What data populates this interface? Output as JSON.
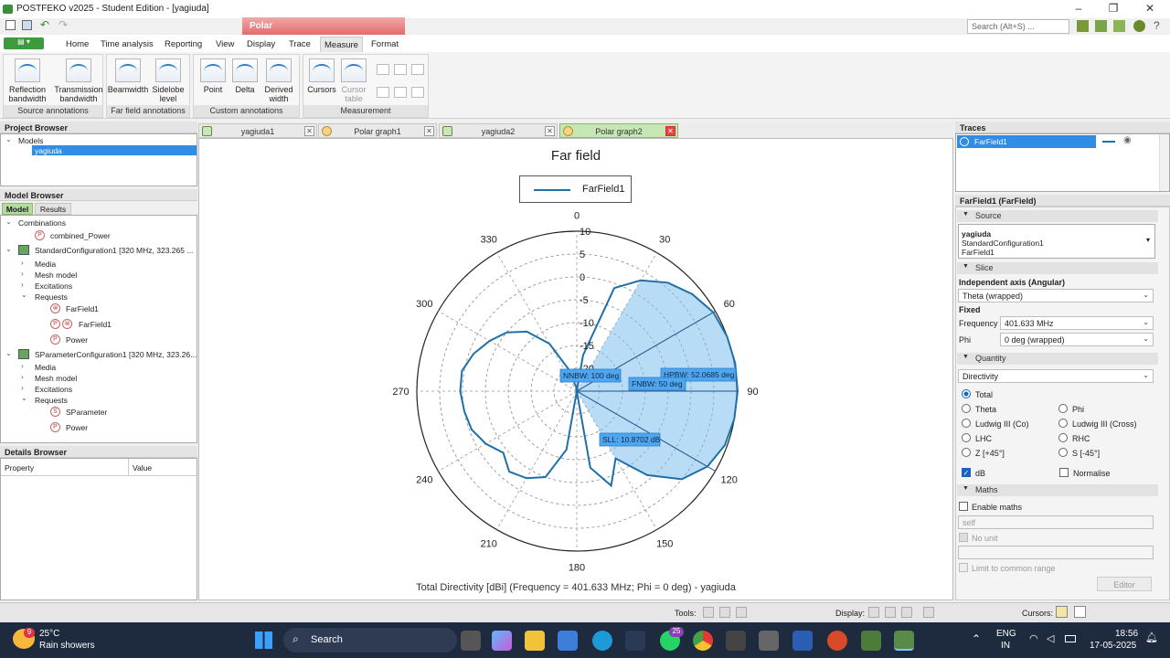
{
  "app": {
    "title": "POSTFEKO v2025 - Student Edition - [yagiuda]",
    "context_tab": "Polar",
    "search_placeholder": "Search (Alt+S) ..."
  },
  "menu": [
    "Home",
    "Time analysis",
    "Reporting",
    "View",
    "Display",
    "Trace",
    "Measure",
    "Format"
  ],
  "ribbon": {
    "groups": [
      {
        "caption": "Source annotations",
        "buttons": [
          [
            "Reflection",
            "bandwidth"
          ],
          [
            "Transmission",
            "bandwidth"
          ]
        ]
      },
      {
        "caption": "Far field annotations",
        "buttons": [
          [
            "Beamwidth",
            ""
          ],
          [
            "Sidelobe",
            "level"
          ]
        ]
      },
      {
        "caption": "Custom annotations",
        "buttons": [
          [
            "Point",
            ""
          ],
          [
            "Delta",
            ""
          ],
          [
            "Derived",
            "width"
          ]
        ]
      },
      {
        "caption": "Measurement",
        "buttons": [
          [
            "Cursors",
            ""
          ],
          [
            "Cursor",
            "table"
          ]
        ]
      }
    ]
  },
  "project_browser": {
    "title": "Project Browser",
    "models_label": "Models",
    "model": "yagiuda"
  },
  "model_browser": {
    "title": "Model Browser",
    "tabs": [
      "Model",
      "Results"
    ],
    "items": [
      "Combinations",
      "combined_Power",
      "StandardConfiguration1 [320 MHz, 323.265 ...",
      "Media",
      "Mesh model",
      "Excitations",
      "Requests",
      "FarField1",
      "FarField1",
      "Power",
      "SParameterConfiguration1 [320 MHz, 323.26...",
      "Media",
      "Mesh model",
      "Excitations",
      "Requests",
      "SParameter",
      "Power"
    ]
  },
  "details_browser": {
    "title": "Details Browser",
    "cols": [
      "Property",
      "Value"
    ]
  },
  "doc_tabs": [
    "yagiuda1",
    "Polar graph1",
    "yagiuda2",
    "Polar graph2"
  ],
  "chart_data": {
    "type": "polar",
    "title": "Far field",
    "legend": [
      "FarField1"
    ],
    "legend_position": "top-center",
    "footer": "Total Directivity [dBi] (Frequency = 401.633 MHz; Phi = 0 deg) - yagiuda",
    "angle_labels": [
      "0",
      "30",
      "60",
      "90",
      "120",
      "150",
      "180",
      "210",
      "240",
      "270",
      "300",
      "330"
    ],
    "radial_labels": [
      "10",
      "5",
      "0",
      "-5",
      "-10",
      "-15",
      "-20"
    ],
    "radial_range": [
      -25,
      10
    ],
    "theta_deg": [
      0,
      10,
      20,
      30,
      40,
      50,
      60,
      70,
      80,
      90,
      100,
      110,
      120,
      130,
      140,
      150,
      160,
      170,
      180,
      190,
      200,
      210,
      220,
      230,
      240,
      250,
      260,
      270,
      280,
      290,
      300,
      310,
      320,
      330,
      340,
      350
    ],
    "directivity_dbi": [
      -25,
      -17,
      -1,
      3,
      6,
      8,
      9.5,
      10,
      10.2,
      10.2,
      10,
      9.5,
      8,
      5,
      -1,
      -8,
      -3,
      -8,
      -25,
      -12,
      -5,
      -3,
      -2,
      -4,
      -2,
      -0.5,
      0,
      0.5,
      0.5,
      -1,
      -3,
      -5,
      -8,
      -13,
      -20,
      -24
    ],
    "annotations": [
      "NNBW: 100 deg",
      "HPBW: 52.0685 deg",
      "FNBW: 50 deg",
      "SLL: 10.8702 dB"
    ],
    "series_color": "#1f6fa9",
    "fill_color": "#7ec0ee"
  },
  "traces": {
    "title": "Traces",
    "items": [
      "FarField1"
    ]
  },
  "properties": {
    "title": "FarField1 (FarField)",
    "source_section": "Source",
    "source_lines": [
      "yagiuda",
      "StandardConfiguration1",
      "FarField1"
    ],
    "slice_section": "Slice",
    "independent_axis_label": "Independent axis (Angular)",
    "independent_axis_value": "Theta (wrapped)",
    "fixed_label": "Fixed",
    "frequency_label": "Frequency",
    "frequency_value": "401.633 MHz",
    "phi_label": "Phi",
    "phi_value": "0 deg (wrapped)",
    "quantity_section": "Quantity",
    "quantity_value": "Directivity",
    "radio_options": [
      "Total",
      "Theta",
      "Phi",
      "Ludwig III (Co)",
      "Ludwig III (Cross)",
      "LHC",
      "RHC",
      "Z [+45°]",
      "S [-45°]"
    ],
    "db_label": "dB",
    "normalise_label": "Normalise",
    "maths_section": "Maths",
    "enable_maths_label": "Enable maths",
    "maths_placeholder": "self",
    "no_unit_label": "No unit",
    "limit_label": "Limit to common range",
    "editor_label": "Editor"
  },
  "statusbar": {
    "tools": "Tools:",
    "display": "Display:",
    "cursors": "Cursors:"
  },
  "taskbar": {
    "weather_temp": "25°C",
    "weather_desc": "Rain showers",
    "weather_badge": "9",
    "search": "Search",
    "lang1": "ENG",
    "lang2": "IN",
    "time": "18:56",
    "date": "17-05-2025",
    "whatsapp_badge": "25"
  }
}
